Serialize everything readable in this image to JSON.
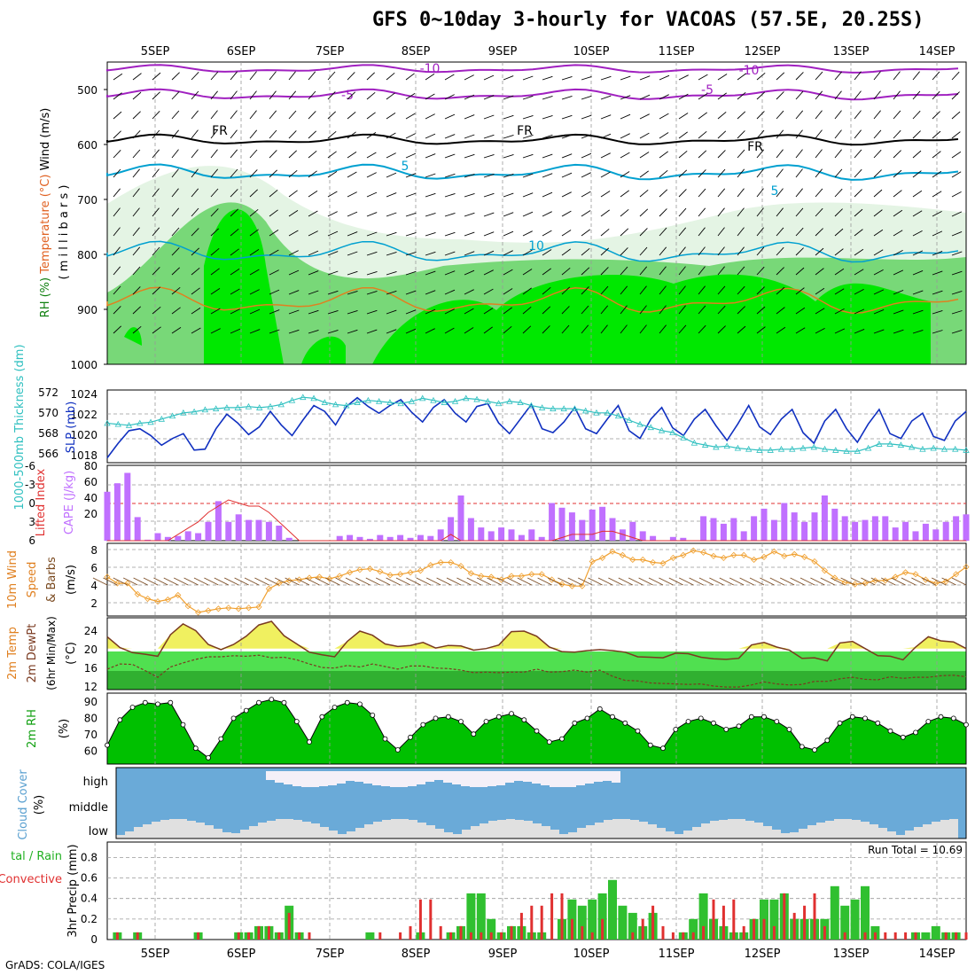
{
  "title": "GFS 0~10day 3-hourly for VACOAS (57.5E, 20.25S)",
  "credit": "GrADS: COLA/IGES",
  "days": [
    "5SEP",
    "6SEP",
    "7SEP",
    "8SEP",
    "9SEP",
    "10SEP",
    "11SEP",
    "12SEP",
    "13SEP",
    "14SEP"
  ],
  "colors": {
    "rh_light": "#e4f4e4",
    "rh_mid": "#78d878",
    "rh_dark": "#00e800",
    "temp_line": "#00a0d0",
    "temp_neg": "#a020c0",
    "slp": "#1030c0",
    "thickness": "#30c0c0",
    "cape": "#c070ff",
    "li": "#e03030",
    "wind": "#f0a030",
    "temp2m": "#f0f060",
    "rh2m": "#00c000",
    "cloud": "#6aaad8",
    "cloud_gap": "#e0e0e0",
    "precip_total": "#30c030",
    "precip_conv": "#e03030"
  },
  "chart_data": [
    {
      "type": "heatmap",
      "panel": "upper-air",
      "labels": [
        "Wind (m/s)",
        "Temperature (°C)",
        "RH (%)",
        "( m i l l i b a r s )"
      ],
      "y_ticks": [
        "500",
        "600",
        "700",
        "800",
        "900",
        "1000"
      ],
      "contour_labels": [
        "-10",
        "-5",
        "FR",
        "5",
        "10"
      ]
    },
    {
      "type": "line",
      "panel": "slp-thickness",
      "ylabel_left": "1000-500mb Thickness (dm)",
      "ylabel_right": "SLP (mb)",
      "y_ticks_left": [
        "572",
        "570",
        "568",
        "566"
      ],
      "y_ticks_right": [
        "1024",
        "1022",
        "1020",
        "1018"
      ],
      "ylim_thickness": [
        565,
        572
      ],
      "ylim_slp": [
        1017.5,
        1025.0
      ],
      "series": [
        {
          "name": "SLP (mb)",
          "values": [
            1018.0,
            1019.5,
            1020.8,
            1021.0,
            1020.3,
            1019.3,
            1020.0,
            1020.5,
            1018.8,
            1018.9,
            1021.0,
            1022.5,
            1021.6,
            1020.4,
            1021.2,
            1022.8,
            1021.4,
            1020.3,
            1021.9,
            1023.4,
            1022.8,
            1021.4,
            1023.3,
            1024.2,
            1023.3,
            1022.6,
            1023.4,
            1024.0,
            1022.7,
            1021.7,
            1023.2,
            1024.0,
            1022.6,
            1021.7,
            1023.3,
            1023.6,
            1021.6,
            1020.5,
            1022.0,
            1023.5,
            1021.0,
            1020.6,
            1021.7,
            1023.2,
            1021.0,
            1020.5,
            1022.0,
            1023.4,
            1020.8,
            1020.0,
            1022.0,
            1023.2,
            1021.1,
            1020.3,
            1022.0,
            1023.0,
            1021.3,
            1019.8,
            1021.5,
            1023.4,
            1021.2,
            1020.4,
            1022.0,
            1023.0,
            1020.6,
            1019.5,
            1021.8,
            1023.0,
            1021.0,
            1019.6,
            1021.5,
            1023.0,
            1020.5,
            1020.0,
            1021.8,
            1022.6,
            1020.2,
            1019.8,
            1021.8,
            1022.8
          ]
        },
        {
          "name": "1000-500mb Thickness (dm)",
          "values": [
            568.8,
            568.7,
            568.6,
            568.8,
            568.9,
            569.2,
            569.5,
            569.8,
            569.9,
            570.1,
            570.2,
            570.3,
            570.3,
            570.4,
            570.3,
            570.4,
            570.6,
            571.0,
            571.3,
            571.2,
            570.8,
            570.6,
            570.5,
            570.8,
            571.0,
            570.9,
            570.8,
            570.7,
            570.9,
            571.2,
            571.0,
            570.8,
            570.9,
            571.2,
            571.1,
            570.9,
            570.7,
            570.9,
            570.8,
            570.5,
            570.3,
            570.2,
            570.2,
            570.2,
            570.0,
            569.8,
            569.8,
            569.5,
            569.1,
            568.7,
            568.4,
            568.1,
            567.9,
            567.4,
            566.9,
            566.7,
            566.5,
            566.6,
            566.4,
            566.3,
            566.2,
            566.2,
            566.3,
            566.3,
            566.4,
            566.5,
            566.3,
            566.2,
            566.1,
            566.1,
            566.4,
            566.8,
            566.8,
            566.7,
            566.5,
            566.3,
            566.4,
            566.3,
            566.3,
            566.2
          ]
        }
      ]
    },
    {
      "type": "bar",
      "panel": "cape-li",
      "ylabel_left": "Lifted Index",
      "ylabel_right": "CAPE (J/kg)",
      "y_ticks_left": [
        "-6",
        "-3",
        "0",
        "3",
        "6"
      ],
      "y_ticks_right": [
        "80",
        "60",
        "40",
        "20"
      ],
      "ylim_cape": [
        0,
        80
      ],
      "ylim_li": [
        6,
        -6
      ],
      "series": [
        {
          "name": "CAPE (J/kg)",
          "values": [
            52,
            61,
            72,
            25,
            1,
            8,
            4,
            5,
            10,
            8,
            20,
            42,
            20,
            28,
            22,
            22,
            20,
            16,
            3,
            0,
            0,
            0,
            0,
            5,
            6,
            4,
            2,
            6,
            4,
            6,
            3,
            6,
            5,
            12,
            25,
            48,
            24,
            14,
            10,
            14,
            12,
            6,
            12,
            4,
            40,
            35,
            30,
            22,
            33,
            36,
            24,
            12,
            20,
            10,
            5,
            0,
            4,
            3,
            0,
            26,
            24,
            18,
            24,
            10,
            26,
            34,
            22,
            40,
            30,
            20,
            30,
            48,
            34,
            26,
            20,
            22,
            26,
            26,
            14,
            20,
            10,
            18,
            12,
            20,
            26,
            28
          ]
        },
        {
          "name": "Lifted Index",
          "values": [
            6,
            6,
            6,
            6,
            6,
            6,
            6,
            5,
            4,
            3,
            1.5,
            0.5,
            -0.5,
            0,
            0.5,
            0.5,
            1.5,
            3,
            4.5,
            6,
            6,
            6,
            6,
            6,
            6,
            6,
            6,
            6,
            6,
            6,
            6,
            6,
            6,
            6,
            5,
            6,
            6,
            6,
            6,
            6,
            6,
            6,
            6,
            6,
            6,
            5.5,
            5,
            5,
            5,
            4.5,
            4.5,
            5,
            5.5,
            6,
            6,
            6,
            6,
            6,
            6,
            6,
            6,
            6,
            6,
            6,
            6,
            6,
            6,
            6,
            6,
            6,
            6,
            6,
            6,
            6,
            6,
            6,
            6,
            6,
            6,
            6,
            6,
            6,
            6,
            6,
            6,
            6
          ]
        }
      ]
    },
    {
      "type": "line",
      "panel": "wind10m",
      "ylabel": "10m Wind Speed & Barbs (m/s)",
      "y_ticks": [
        "8",
        "6",
        "4",
        "2"
      ],
      "ylim": [
        1,
        9
      ],
      "series": [
        {
          "name": "10m Wind Speed",
          "values": [
            5.3,
            4.6,
            4.6,
            3.4,
            2.9,
            2.6,
            2.8,
            3.3,
            2.1,
            1.4,
            1.6,
            1.8,
            1.9,
            1.8,
            1.9,
            2.0,
            4.0,
            4.6,
            4.9,
            5.0,
            5.2,
            5.3,
            5.1,
            5.4,
            5.8,
            6.1,
            6.2,
            5.9,
            5.5,
            5.6,
            5.8,
            6.0,
            6.6,
            6.9,
            6.9,
            6.5,
            5.7,
            5.4,
            5.3,
            5.0,
            5.4,
            5.4,
            5.6,
            5.6,
            5.0,
            4.5,
            4.3,
            4.3,
            7.0,
            7.4,
            8.1,
            7.7,
            7.2,
            7.2,
            6.9,
            6.8,
            7.4,
            7.7,
            8.2,
            8.0,
            7.6,
            7.4,
            7.7,
            7.7,
            7.2,
            7.5,
            8.1,
            7.6,
            7.8,
            7.5,
            7.0,
            6.0,
            5.2,
            4.7,
            4.5,
            4.6,
            4.9,
            4.9,
            5.3,
            5.8,
            5.6,
            5.0,
            4.6,
            4.8,
            5.6,
            6.4
          ]
        }
      ]
    },
    {
      "type": "area",
      "panel": "temp2m",
      "ylabel": "2m Temp 2m DewPt (6hr Min/Max) (°C)",
      "y_ticks": [
        "24",
        "20",
        "16",
        "12"
      ],
      "ylim": [
        12,
        26
      ],
      "series": [
        {
          "name": "2m Temp",
          "values": [
            22.3,
            20.2,
            19.2,
            18.9,
            18.5,
            22.7,
            24.8,
            23.5,
            20.8,
            19.8,
            20.8,
            22.4,
            24.6,
            25.3,
            22.5,
            20.9,
            19.3,
            18.8,
            18.4,
            21.4,
            23.4,
            22.6,
            20.9,
            20.4,
            20.6,
            21.2,
            20.1,
            20.6,
            20.5,
            19.7,
            20.0,
            20.7,
            23.3,
            23.4,
            22.4,
            20.3,
            19.4,
            19.3,
            19.6,
            19.8,
            19.6,
            19.3,
            18.4,
            18.3,
            18.2,
            19.1,
            19.0,
            18.3,
            18.0,
            17.9,
            18.1,
            20.7,
            21.2,
            20.3,
            19.7,
            18.1,
            18.2,
            17.6,
            21.1,
            21.4,
            20.0,
            18.6,
            18.5,
            17.8,
            20.3,
            22.3,
            21.5,
            21.3,
            20.0
          ]
        },
        {
          "name": "2m DewPt",
          "values": [
            16.0,
            17.0,
            16.9,
            15.7,
            14.4,
            16.4,
            17.2,
            17.9,
            18.4,
            18.4,
            18.6,
            18.5,
            18.7,
            18.2,
            18.3,
            17.8,
            17.0,
            16.3,
            16.2,
            16.7,
            16.4,
            17.0,
            16.5,
            16.0,
            16.6,
            16.6,
            16.2,
            16.1,
            15.8,
            15.3,
            15.4,
            15.3,
            15.4,
            15.4,
            16.0,
            15.4,
            15.5,
            15.8,
            15.4,
            15.8,
            14.6,
            13.8,
            13.7,
            13.3,
            13.2,
            13.1,
            13.0,
            13.1,
            12.7,
            12.5,
            12.5,
            12.9,
            13.5,
            13.1,
            12.9,
            13.0,
            13.6,
            13.6,
            14.1,
            14.4,
            14.0,
            13.9,
            14.5,
            14.2,
            14.4,
            14.4,
            14.7,
            14.8,
            14.5
          ]
        }
      ]
    },
    {
      "type": "area",
      "panel": "rh2m",
      "ylabel": "2m RH (%)",
      "y_ticks": [
        "90",
        "80",
        "70",
        "60"
      ],
      "ylim": [
        50,
        95
      ],
      "series": [
        {
          "name": "2m RH",
          "values": [
            62,
            78,
            86,
            89,
            88,
            89,
            75,
            60,
            54,
            66,
            79,
            84,
            89,
            91,
            89,
            77,
            64,
            80,
            86,
            89,
            88,
            81,
            66,
            59,
            67,
            75,
            79,
            80,
            77,
            69,
            77,
            80,
            82,
            78,
            71,
            64,
            66,
            76,
            79,
            85,
            80,
            76,
            71,
            62,
            60,
            72,
            77,
            79,
            76,
            72,
            74,
            80,
            80,
            77,
            72,
            61,
            59,
            65,
            76,
            80,
            79,
            76,
            71,
            67,
            70,
            77,
            80,
            79,
            75
          ]
        }
      ]
    },
    {
      "type": "area",
      "panel": "cloud",
      "ylabel": "Cloud Cover (%)",
      "y_ticks": [
        "high",
        "middle",
        "low"
      ]
    },
    {
      "type": "bar",
      "panel": "precip",
      "ylabel_left": "Total / Rain Convective",
      "ylabel_right": "3hr Precip (mm)",
      "run_total": "Run Total = 10.69",
      "y_ticks": [
        "0.8",
        "0.6",
        "0.4",
        "0.2",
        "0"
      ],
      "ylim": [
        0,
        0.95
      ],
      "series": [
        {
          "name": "Total",
          "values": [
            0,
            0.07,
            0,
            0.07,
            0,
            0,
            0,
            0,
            0,
            0.07,
            0,
            0,
            0,
            0.07,
            0.07,
            0.13,
            0.13,
            0.07,
            0.33,
            0.07,
            0,
            0,
            0,
            0,
            0,
            0,
            0.07,
            0,
            0,
            0,
            0,
            0.07,
            0,
            0,
            0.07,
            0.13,
            0.45,
            0.45,
            0.2,
            0.07,
            0.13,
            0.13,
            0.07,
            0.07,
            0,
            0.2,
            0.39,
            0.33,
            0.39,
            0.45,
            0.58,
            0.33,
            0.26,
            0.13,
            0.26,
            0,
            0,
            0.07,
            0.2,
            0.45,
            0.2,
            0.13,
            0.07,
            0.07,
            0.2,
            0.39,
            0.39,
            0.45,
            0.2,
            0.2,
            0.2,
            0.2,
            0.52,
            0.33,
            0.39,
            0.52,
            0.13,
            0,
            0,
            0,
            0.07,
            0.07,
            0.13,
            0.07,
            0.07,
            0
          ]
        },
        {
          "name": "Convective",
          "values": [
            0,
            0.07,
            0,
            0.07,
            0,
            0,
            0,
            0,
            0,
            0.07,
            0,
            0,
            0,
            0.07,
            0.07,
            0.13,
            0.13,
            0.07,
            0.26,
            0.07,
            0.07,
            0,
            0,
            0,
            0,
            0,
            0,
            0.07,
            0,
            0.07,
            0.13,
            0.39,
            0.39,
            0.13,
            0.07,
            0.13,
            0.07,
            0.07,
            0.07,
            0.07,
            0.13,
            0.26,
            0.33,
            0.33,
            0.45,
            0.45,
            0.2,
            0.13,
            0.07,
            0.2,
            0,
            0,
            0.07,
            0.2,
            0.33,
            0.13,
            0.07,
            0.07,
            0.07,
            0.13,
            0.39,
            0.33,
            0.39,
            0.13,
            0.2,
            0.2,
            0.13,
            0.45,
            0.26,
            0.33,
            0.45,
            0.13,
            0,
            0.07,
            0,
            0.07,
            0.07,
            0.07,
            0.07,
            0.07,
            0.07,
            0,
            0,
            0.07,
            0.07,
            0.07
          ]
        }
      ]
    }
  ]
}
